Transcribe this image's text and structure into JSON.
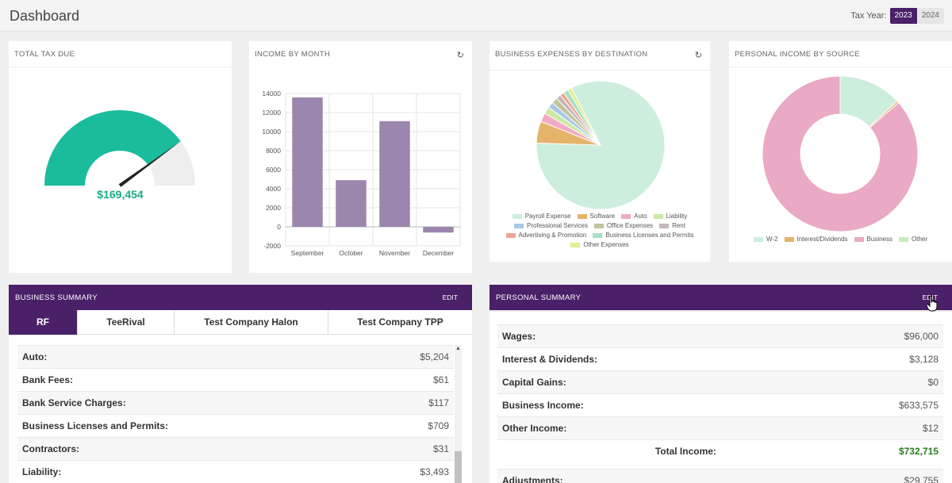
{
  "header": {
    "title": "Dashboard",
    "tax_year_label": "Tax Year:",
    "years": [
      "2023",
      "2024"
    ],
    "selected_year": "2023"
  },
  "total_tax": {
    "title": "TOTAL TAX DUE",
    "value": "$169,454",
    "gauge_fraction": 0.8,
    "colors": {
      "fill": "#1abc9c",
      "track": "#eeeeee",
      "needle": "#222222"
    }
  },
  "income_by_month": {
    "title": "INCOME BY MONTH",
    "refresh_icon": "refresh-icon",
    "chart_data": {
      "type": "bar",
      "categories": [
        "September",
        "October",
        "November",
        "December"
      ],
      "values": [
        13600,
        4900,
        11100,
        -600
      ],
      "ylim": [
        -2000,
        14000
      ],
      "yticks": [
        "14000",
        "12000",
        "10000",
        "8000",
        "6000",
        "4000",
        "2000",
        "0",
        "-2000"
      ],
      "grid": true,
      "color": "#9b86ad"
    }
  },
  "business_expenses": {
    "title": "BUSINESS EXPENSES BY DESTINATION",
    "refresh_icon": "refresh-icon",
    "chart_data": {
      "type": "pie",
      "labels": [
        "Payroll Expense",
        "Software",
        "Auto",
        "Liability",
        "Professional Services",
        "Office Expenses",
        "Rent",
        "Advertising & Promotion",
        "Business Licenses and Permits",
        "Other Expenses"
      ],
      "values": [
        83,
        5.5,
        2.2,
        1.8,
        1.5,
        1.5,
        1.2,
        1.0,
        1.3,
        1.0
      ],
      "colors": [
        "#cdeedd",
        "#e6b36a",
        "#f2a9c5",
        "#cde9a6",
        "#a8c8e8",
        "#c3c39c",
        "#c4b7b7",
        "#f0a394",
        "#a8e0c4",
        "#dff08d"
      ],
      "legend": "bottom"
    }
  },
  "personal_income": {
    "title": "PERSONAL INCOME BY SOURCE",
    "chart_data": {
      "type": "pie",
      "labels": [
        "W-2",
        "Interest/Dividends",
        "Business",
        "Other"
      ],
      "values": [
        96000,
        3128,
        633575,
        12
      ],
      "colors": [
        "#cdeedd",
        "#e6b36a",
        "#eaa9c4",
        "#c7ecc1"
      ],
      "legend": "bottom"
    }
  },
  "business_summary": {
    "title": "BUSINESS SUMMARY",
    "edit_label": "EDIT",
    "tabs": [
      "RF",
      "TeeRival",
      "Test Company Halon",
      "Test Company TPP"
    ],
    "active_tab": "RF",
    "rows": [
      {
        "label": "Auto:",
        "value": "$5,204"
      },
      {
        "label": "Bank Fees:",
        "value": "$61"
      },
      {
        "label": "Bank Service Charges:",
        "value": "$117"
      },
      {
        "label": "Business Licenses and Permits:",
        "value": "$709"
      },
      {
        "label": "Contractors:",
        "value": "$31"
      },
      {
        "label": "Liability:",
        "value": "$3,493"
      }
    ]
  },
  "personal_summary": {
    "title": "PERSONAL SUMMARY",
    "edit_label": "EDIT",
    "rows": [
      {
        "label": "Wages:",
        "value": "$96,000"
      },
      {
        "label": "Interest & Dividends:",
        "value": "$3,128"
      },
      {
        "label": "Capital Gains:",
        "value": "$0"
      },
      {
        "label": "Business Income:",
        "value": "$633,575"
      },
      {
        "label": "Other Income:",
        "value": "$12"
      }
    ],
    "total_label": "Total Income:",
    "total_value": "$732,715",
    "adjustments_label": "Adjustments:",
    "adjustments_value": "$29,755"
  }
}
